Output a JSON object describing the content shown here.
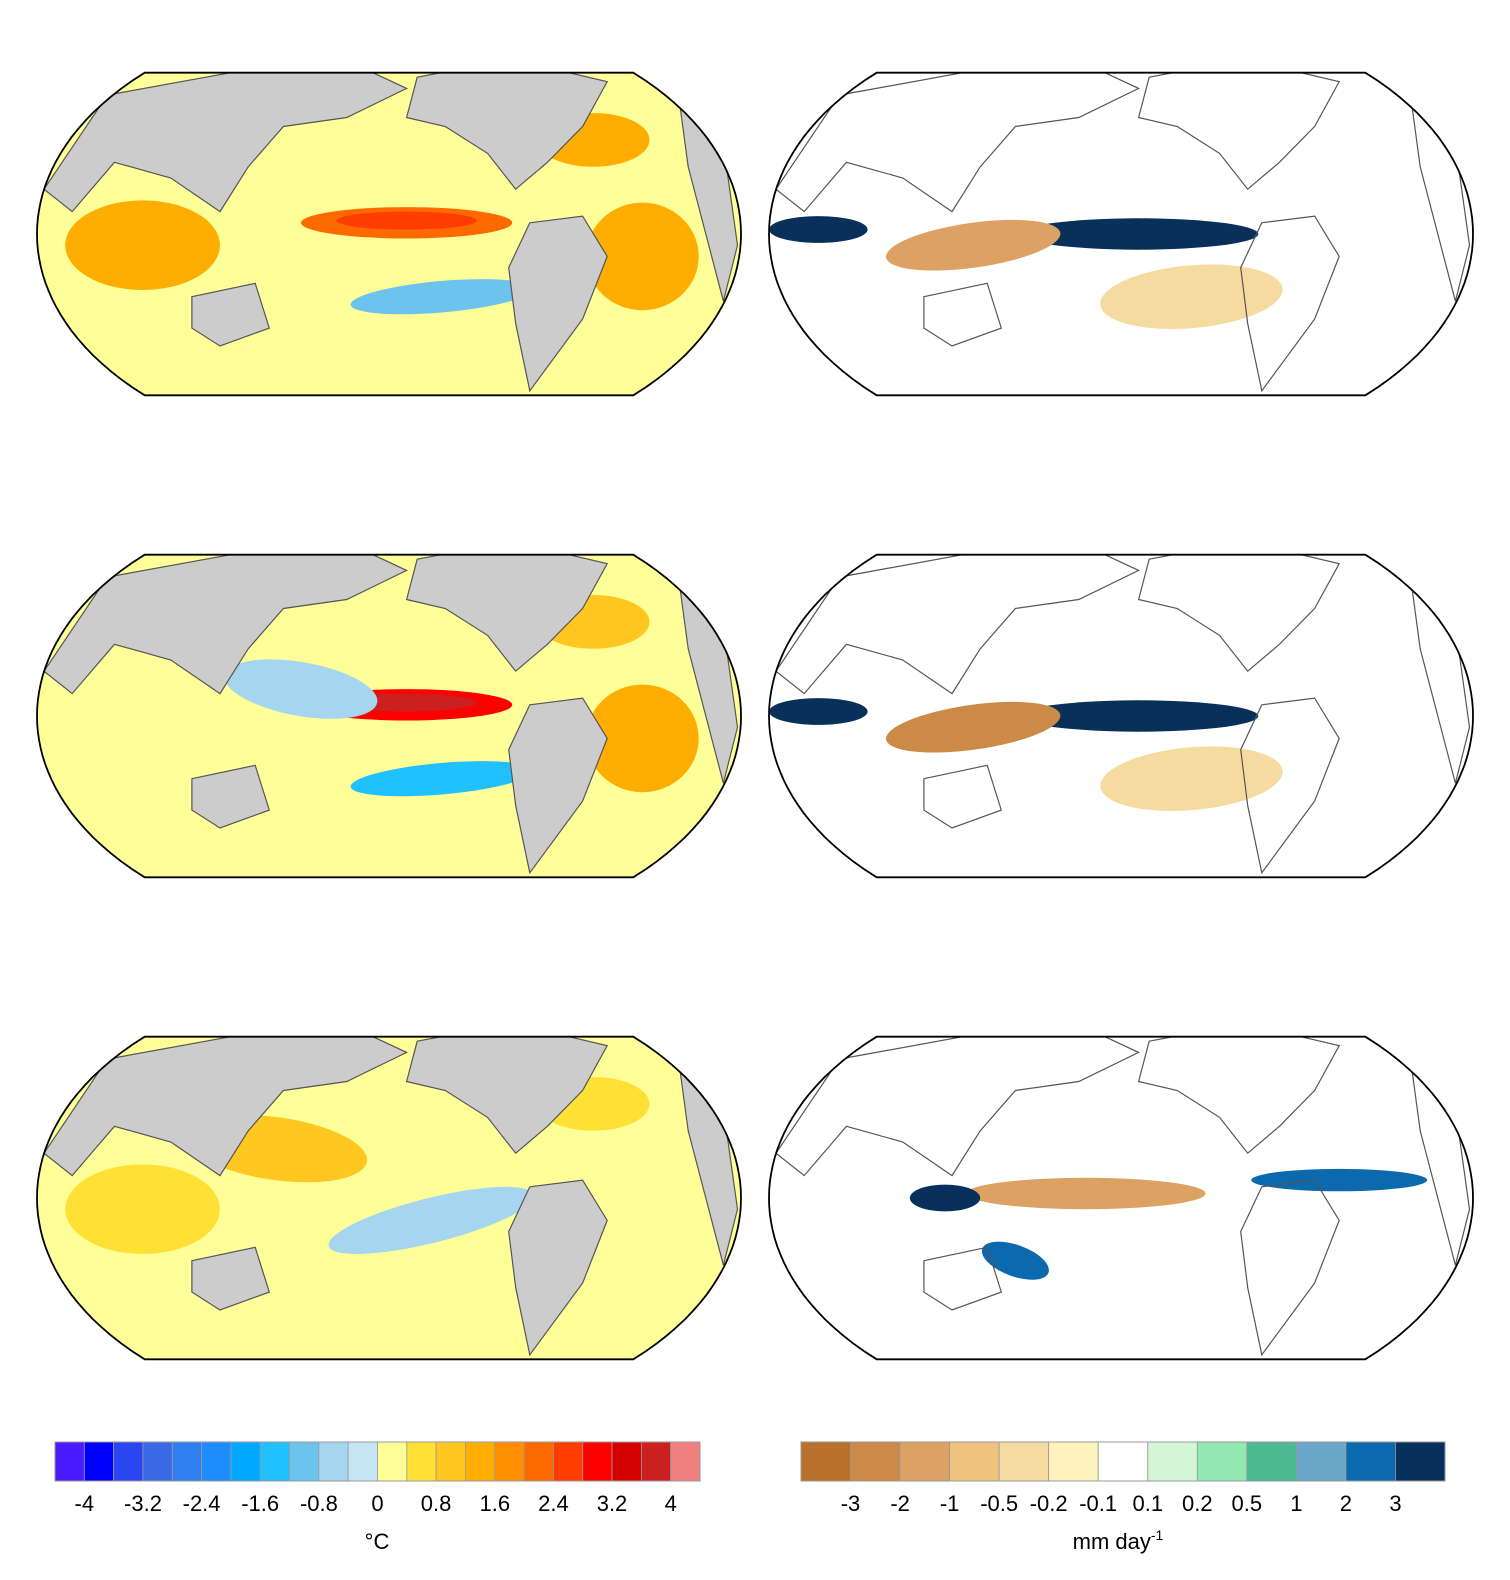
{
  "chart_data": {
    "type": "heatmap",
    "layout": "3 rows x 2 columns of global maps",
    "colors": {
      "land": "#cccccc",
      "frame": "#000000",
      "coast": "#555555"
    },
    "panels": [
      {
        "row": 1,
        "variable": "temperature",
        "projection": "pacific-centered ellipse",
        "features": [
          {
            "name": "central pacific warm",
            "level": 2.0
          },
          {
            "name": "south pacific cool",
            "level": -1.0
          },
          {
            "name": "indian ocean warm",
            "level": 1.2
          },
          {
            "name": "north atlantic warm",
            "level": 1.4
          },
          {
            "name": "south atlantic warm",
            "level": 1.2
          }
        ]
      },
      {
        "row": 1,
        "variable": "precipitation",
        "projection": "pacific-centered ellipse",
        "features": [
          {
            "name": "equatorial pacific wet",
            "level": 3
          },
          {
            "name": "maritime continent dry",
            "level": -2
          },
          {
            "name": "indian ocean wet",
            "level": 3
          },
          {
            "name": "south pacific dry",
            "level": -0.5
          }
        ]
      },
      {
        "row": 2,
        "variable": "temperature",
        "projection": "pacific-centered ellipse",
        "features": [
          {
            "name": "central pacific warm",
            "level": 2.8
          },
          {
            "name": "west pacific cool",
            "level": -0.6
          },
          {
            "name": "south pacific cool",
            "level": -1.4
          },
          {
            "name": "north atlantic warm",
            "level": 1.0
          },
          {
            "name": "south atlantic warm",
            "level": 1.2
          }
        ]
      },
      {
        "row": 2,
        "variable": "precipitation",
        "projection": "pacific-centered ellipse",
        "features": [
          {
            "name": "equatorial pacific wet",
            "level": 3
          },
          {
            "name": "maritime continent dry",
            "level": -3
          },
          {
            "name": "indian ocean wet",
            "level": 3
          },
          {
            "name": "south pacific dry",
            "level": -0.5
          }
        ]
      },
      {
        "row": 3,
        "variable": "temperature",
        "projection": "pacific-centered ellipse",
        "features": [
          {
            "name": "east pacific cool",
            "level": -0.6
          },
          {
            "name": "west pacific warm",
            "level": 1.0
          },
          {
            "name": "indian ocean warm",
            "level": 0.8
          },
          {
            "name": "north atlantic warm",
            "level": 0.8
          }
        ]
      },
      {
        "row": 3,
        "variable": "precipitation",
        "projection": "pacific-centered ellipse",
        "features": [
          {
            "name": "equatorial pacific dry",
            "level": -2
          },
          {
            "name": "maritime continent wet",
            "level": 3
          },
          {
            "name": "south pacific wet",
            "level": 2
          },
          {
            "name": "atlantic itcz wet",
            "level": 2
          }
        ]
      }
    ],
    "colorbars": [
      {
        "variable": "temperature",
        "tick_labels": [
          "-4",
          "-3.2",
          "-2.4",
          "-1.6",
          "-0.8",
          "0",
          "0.8",
          "1.6",
          "2.4",
          "3.2",
          "4"
        ],
        "tick_values": [
          -4,
          -3.2,
          -2.4,
          -1.6,
          -0.8,
          0,
          0.8,
          1.6,
          2.4,
          3.2,
          4
        ],
        "unit_label": "°C",
        "colors": [
          "#4b1bff",
          "#0000ff",
          "#2a45f2",
          "#3a6ae6",
          "#2f7ff0",
          "#1e8cff",
          "#00a8ff",
          "#21c0ff",
          "#6cc3ee",
          "#a6d5f0",
          "#c6e6f5",
          "#ffff99",
          "#ffe135",
          "#ffc71f",
          "#ffad00",
          "#ff8f00",
          "#ff6a00",
          "#ff3d00",
          "#ff0000",
          "#d40000",
          "#cc1f1f",
          "#f08080"
        ]
      },
      {
        "variable": "precipitation",
        "tick_labels": [
          "-3",
          "-2",
          "-1",
          "-0.5",
          "-0.2",
          "-0.1",
          "0.1",
          "0.2",
          "0.5",
          "1",
          "2",
          "3"
        ],
        "tick_values": [
          -3,
          -2,
          -1,
          -0.5,
          -0.2,
          -0.1,
          0.1,
          0.2,
          0.5,
          1,
          2,
          3
        ],
        "unit_label": "mm day",
        "unit_superscript": "-1",
        "colors": [
          "#b8702a",
          "#cc8a48",
          "#dca163",
          "#efc27d",
          "#f5dba0",
          "#fef2be",
          "#ffffff",
          "#d4f6d4",
          "#93e8b1",
          "#4db892",
          "#6aa7c8",
          "#0a6aad",
          "#08305a"
        ]
      }
    ]
  }
}
